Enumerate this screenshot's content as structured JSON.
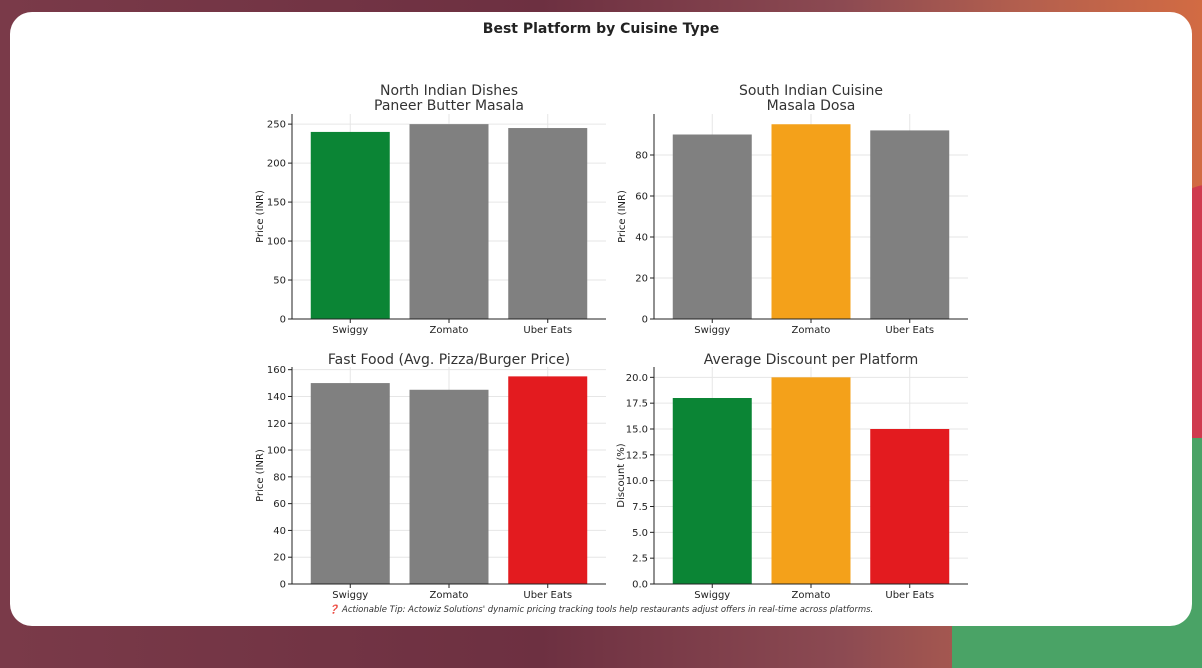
{
  "figure": {
    "title": "Best Platform by Cuisine Type",
    "tip": "❓ Actionable Tip: Actowiz Solutions' dynamic pricing tracking tools help restaurants adjust offers in real-time across platforms."
  },
  "colors": {
    "green": "#0b8535",
    "grey": "#808080",
    "orange": "#f4a11a",
    "red": "#e31b1f",
    "grid": "#e6e6e6",
    "axis": "#222222"
  },
  "chart_data": [
    {
      "type": "bar",
      "title": [
        "North Indian Dishes",
        "Paneer Butter Masala"
      ],
      "categories": [
        "Swiggy",
        "Zomato",
        "Uber Eats"
      ],
      "values": [
        240,
        250,
        245
      ],
      "bar_colors": [
        "green",
        "grey",
        "grey"
      ],
      "ylabel": "Price (INR)",
      "ylim": [
        0,
        263
      ],
      "yticks": [
        0,
        50,
        100,
        150,
        200,
        250
      ],
      "ytick_labels": [
        "0",
        "50",
        "100",
        "150",
        "200",
        "250"
      ],
      "grid": true
    },
    {
      "type": "bar",
      "title": [
        "South Indian Cuisine",
        "Masala Dosa"
      ],
      "categories": [
        "Swiggy",
        "Zomato",
        "Uber Eats"
      ],
      "values": [
        90,
        95,
        92
      ],
      "bar_colors": [
        "grey",
        "orange",
        "grey"
      ],
      "ylabel": "Price (INR)",
      "ylim": [
        0,
        100
      ],
      "yticks": [
        0,
        20,
        40,
        60,
        80
      ],
      "ytick_labels": [
        "0",
        "20",
        "40",
        "60",
        "80"
      ],
      "grid": true
    },
    {
      "type": "bar",
      "title": [
        "Fast Food (Avg. Pizza/Burger Price)"
      ],
      "categories": [
        "Swiggy",
        "Zomato",
        "Uber Eats"
      ],
      "values": [
        150,
        145,
        155
      ],
      "bar_colors": [
        "grey",
        "grey",
        "red"
      ],
      "ylabel": "Price (INR)",
      "ylim": [
        0,
        162
      ],
      "yticks": [
        0,
        20,
        40,
        60,
        80,
        100,
        120,
        140,
        160
      ],
      "ytick_labels": [
        "0",
        "20",
        "40",
        "60",
        "80",
        "100",
        "120",
        "140",
        "160"
      ],
      "grid": true
    },
    {
      "type": "bar",
      "title": [
        "Average Discount per Platform"
      ],
      "categories": [
        "Swiggy",
        "Zomato",
        "Uber Eats"
      ],
      "values": [
        18,
        20,
        15
      ],
      "bar_colors": [
        "green",
        "orange",
        "red"
      ],
      "ylabel": "Discount (%)",
      "ylim": [
        0,
        21
      ],
      "yticks": [
        0,
        2.5,
        5,
        7.5,
        10,
        12.5,
        15,
        17.5,
        20
      ],
      "ytick_labels": [
        "0.0",
        "2.5",
        "5.0",
        "7.5",
        "10.0",
        "12.5",
        "15.0",
        "17.5",
        "20.0"
      ],
      "grid": true
    }
  ]
}
